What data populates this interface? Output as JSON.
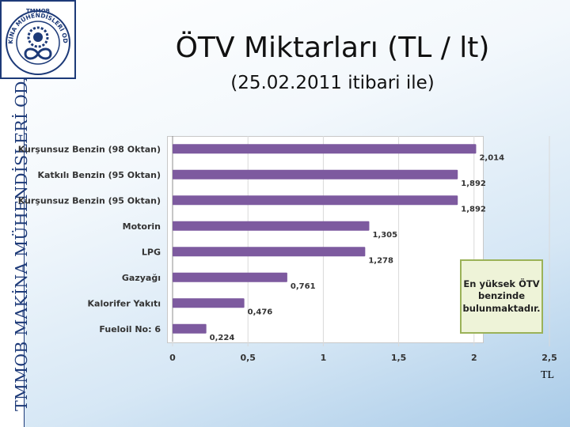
{
  "header": {
    "title": "ÖTV Miktarları (TL / lt)",
    "subtitle": "(25.02.2011 itibari ile)"
  },
  "sidebar": {
    "org_name": "TMMOB MAKİNA MÜHENDİSLERİ ODASI"
  },
  "logo": {
    "top_text": "TMMOB",
    "ring_text": "MAKİNA MÜHENDİSLERİ ODASI",
    "icon": "gear-infinity-emblem-icon"
  },
  "callout": {
    "text": "En yüksek ÖTV benzinde bulunmaktadır."
  },
  "unit_label": "TL",
  "colors": {
    "bar": "#7d5a9f",
    "callout_border": "#9bb258",
    "brand": "#1d3a78"
  },
  "chart_data": {
    "type": "bar",
    "orientation": "horizontal",
    "categories": [
      "Kurşunsuz Benzin (98 Oktan)",
      "Katkılı Benzin (95 Oktan)",
      "Kurşunsuz Benzin (95 Oktan)",
      "Motorin",
      "LPG",
      "Gazyağı",
      "Kalorifer Yakıtı",
      "Fueloil No: 6"
    ],
    "values": [
      2.014,
      1.892,
      1.892,
      1.305,
      1.278,
      0.761,
      0.476,
      0.224
    ],
    "value_labels": [
      "2,014",
      "1,892",
      "1,892",
      "1,305",
      "1,278",
      "0,761",
      "0,476",
      "0,224"
    ],
    "xlim": [
      0,
      2.5
    ],
    "xticks": [
      0,
      0.5,
      1,
      1.5,
      2,
      2.5
    ],
    "xtick_labels": [
      "0",
      "0,5",
      "1",
      "1,5",
      "2",
      "2,5"
    ],
    "grid": "vertical",
    "legend": "none"
  }
}
